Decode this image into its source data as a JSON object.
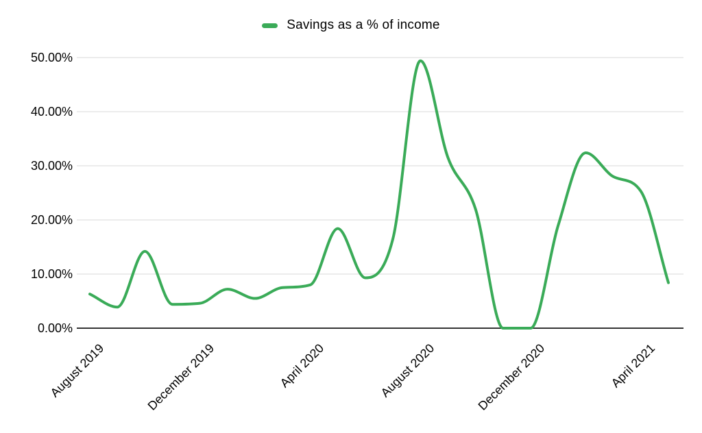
{
  "chart_data": {
    "type": "line",
    "title": "",
    "legend": {
      "label": "Savings as a % of income",
      "position": "top"
    },
    "x": [
      "August 2019",
      "September 2019",
      "October 2019",
      "November 2019",
      "December 2019",
      "January 2020",
      "February 2020",
      "March 2020",
      "April 2020",
      "May 2020",
      "June 2020",
      "July 2020",
      "August 2020",
      "September 2020",
      "October 2020",
      "November 2020",
      "December 2020",
      "January 2021",
      "February 2021",
      "March 2021",
      "April 2021",
      "May 2021"
    ],
    "series": [
      {
        "name": "Savings as a % of income",
        "values": [
          6.3,
          3.9,
          14.2,
          4.4,
          4.6,
          7.2,
          5.5,
          7.5,
          8.0,
          18.4,
          9.3,
          16.5,
          49.4,
          31.5,
          22.0,
          0.0,
          0.0,
          19.0,
          32.4,
          28.0,
          25.3,
          8.4
        ]
      }
    ],
    "x_tick_indices": [
      0,
      4,
      8,
      12,
      16,
      20
    ],
    "x_tick_labels": [
      "August 2019",
      "December 2019",
      "April 2020",
      "August 2020",
      "December 2020",
      "April 2021"
    ],
    "y_ticks": [
      {
        "value": 0,
        "label": "0.00%"
      },
      {
        "value": 10,
        "label": "10.00%"
      },
      {
        "value": 20,
        "label": "20.00%"
      },
      {
        "value": 30,
        "label": "30.00%"
      },
      {
        "value": 40,
        "label": "40.00%"
      },
      {
        "value": 50,
        "label": "50.00%"
      }
    ],
    "ylim": [
      0,
      50
    ],
    "grid": true,
    "smooth": true,
    "colors": {
      "line": "#3aab58",
      "gridline": "#d9d9d9",
      "axis": "#333333",
      "text": "#000000",
      "background": "#ffffff"
    }
  }
}
